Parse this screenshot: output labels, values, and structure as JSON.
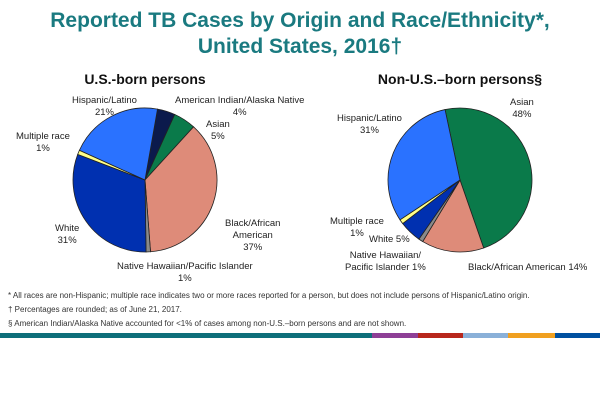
{
  "title_line1": "Reported TB Cases by Origin and Race/Ethnicity*,",
  "title_line2": "United States, 2016†",
  "chart_data": [
    {
      "type": "pie",
      "title": "U.S.-born persons",
      "start_angle_deg": 10,
      "slices": [
        {
          "label": "American Indian/Alaska Native",
          "value": 4,
          "color": "#0b1a4c"
        },
        {
          "label": "Asian",
          "value": 5,
          "color": "#0a7a4a"
        },
        {
          "label": "Black/African American",
          "value": 37,
          "color": "#de8b79"
        },
        {
          "label": "Native Hawaiian/Pacific Islander",
          "value": 1,
          "color": "#8a8a8a"
        },
        {
          "label": "White",
          "value": 31,
          "color": "#0030b0"
        },
        {
          "label": "Multiple race",
          "value": 1,
          "color": "#ffff88"
        },
        {
          "label": "Hispanic/Latino",
          "value": 21,
          "color": "#2a72ff"
        }
      ]
    },
    {
      "type": "pie",
      "title": "Non-U.S.–born persons§",
      "start_angle_deg": -12,
      "slices": [
        {
          "label": "Asian",
          "value": 48,
          "color": "#0a7a4a"
        },
        {
          "label": "Black/African American",
          "value": 14,
          "color": "#de8b79"
        },
        {
          "label": "Native Hawaiian/Pacific Islander",
          "value": 1,
          "color": "#8a8a8a"
        },
        {
          "label": "White",
          "value": 5,
          "color": "#0030b0"
        },
        {
          "label": "Multiple race",
          "value": 1,
          "color": "#ffff88"
        },
        {
          "label": "Hispanic/Latino",
          "value": 31,
          "color": "#2a72ff"
        }
      ]
    }
  ],
  "labels_left": {
    "hispanic": [
      "Hispanic/Latino",
      "21%"
    ],
    "aian": [
      "American Indian/Alaska Native",
      "4%"
    ],
    "asian": [
      "Asian",
      "5%"
    ],
    "multiple": [
      "Multiple race",
      "1%"
    ],
    "white": [
      "White",
      "31%"
    ],
    "black": [
      "Black/African",
      "American",
      "37%"
    ],
    "nhpi": [
      "Native Hawaiian/Pacific Islander",
      "1%"
    ]
  },
  "labels_right": {
    "asian": [
      "Asian",
      "48%"
    ],
    "hispanic": [
      "Hispanic/Latino",
      "31%"
    ],
    "multiple": [
      "Multiple race",
      "1%"
    ],
    "white": "White 5%",
    "nhpi": [
      "Native Hawaiian/",
      "Pacific Islander 1%"
    ],
    "black": "Black/African American  14%"
  },
  "footnotes": [
    "*  All races are non-Hispanic;  multiple race indicates two or more races reported for a person, but does not include persons of Hispanic/Latino origin.",
    "†  Percentages are rounded; as of June 21, 2017.",
    "§  American Indian/Alaska Native accounted for <1% of cases among non-U.S.–born persons and are not shown."
  ],
  "bottom_bar_colors": [
    "#0e6f7a",
    "#8e3f96",
    "#b8271c",
    "#8ab0d8",
    "#f0a020",
    "#0050a0"
  ]
}
